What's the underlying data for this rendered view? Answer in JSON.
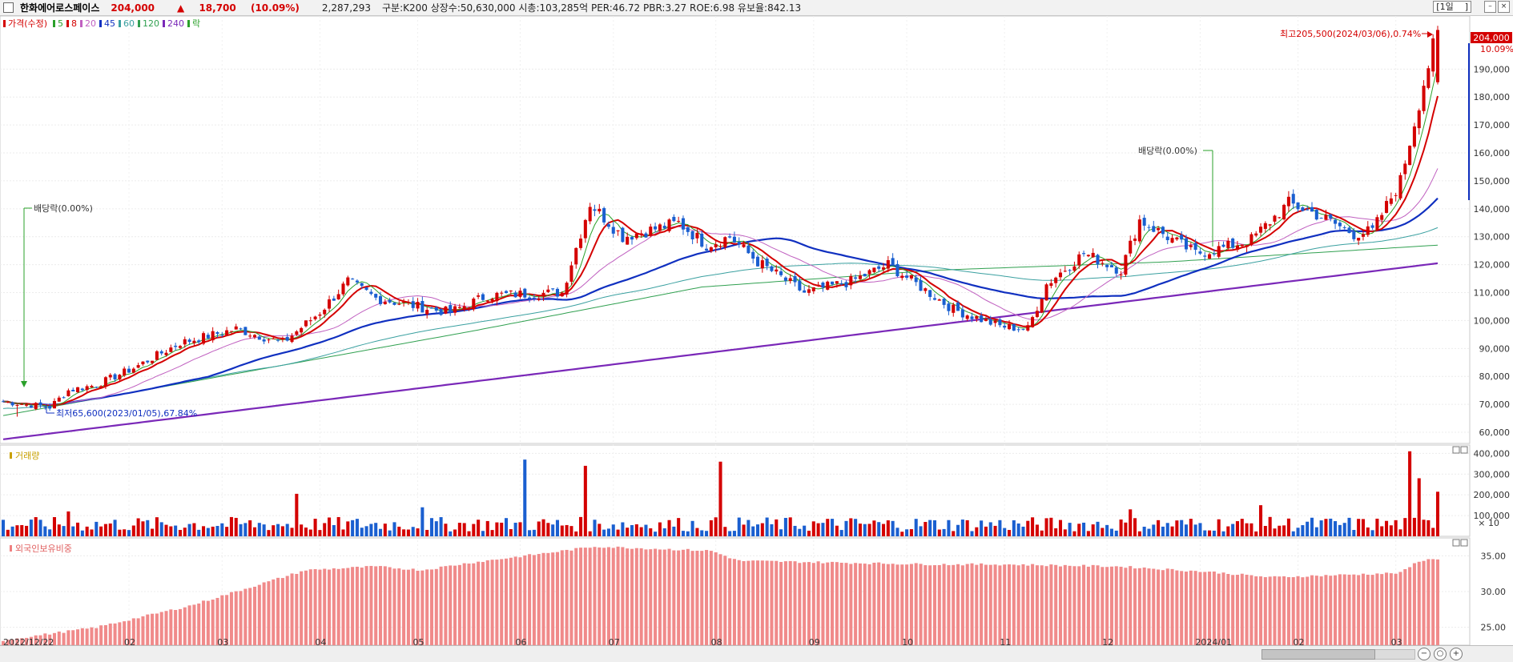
{
  "header": {
    "stock_name": "한화에어로스페이스",
    "price": "204,000",
    "change_arrow": "▲",
    "change": "18,700",
    "change_pct": "(10.09%)",
    "volume": "2,287,293",
    "info": "구분:K200 상장수:50,630,000 시총:103,285억 PER:46.72 PBR:3.27 ROE:6.98 유보율:842.13",
    "period": "1일"
  },
  "price_panel": {
    "legend": [
      {
        "label": "가격(수정)",
        "color": "#d40000"
      },
      {
        "label": "5",
        "color": "#2aa02a"
      },
      {
        "label": "8",
        "color": "#d40000"
      },
      {
        "label": "20",
        "color": "#c060c0"
      },
      {
        "label": "45",
        "color": "#1030c0"
      },
      {
        "label": "60",
        "color": "#3aa0a0"
      },
      {
        "label": "120",
        "color": "#30a050"
      },
      {
        "label": "240",
        "color": "#7a28b8"
      },
      {
        "label": "락",
        "color": "#2aa02a"
      }
    ],
    "high_label": "최고205,500(2024/03/06),0.74%",
    "low_label": "최저65,600(2023/01/05),67.84%",
    "dividend_label_1": "배당락(0.00%)",
    "dividend_label_2": "배당락(0.00%)",
    "current_price_tag": "204,000",
    "current_pct_tag": "10.09%"
  },
  "volume_panel": {
    "title": "거래량",
    "unit": "× 10"
  },
  "foreign_panel": {
    "title": "외국인보유비중"
  },
  "chart_data": [
    {
      "type": "candlestick",
      "title": "가격(수정)",
      "x_start": "2022/12/22",
      "x_tick_labels": [
        "2022/12/22",
        "02",
        "03",
        "04",
        "05",
        "06",
        "07",
        "08",
        "09",
        "10",
        "11",
        "12",
        "2024/01",
        "02",
        "03"
      ],
      "y_ticks": [
        60000,
        70000,
        80000,
        90000,
        100000,
        110000,
        120000,
        130000,
        140000,
        150000,
        160000,
        170000,
        180000,
        190000
      ],
      "y_tick_labels": [
        "60,000",
        "70,000",
        "80,000",
        "90,000",
        "100,000",
        "110,000",
        "120,000",
        "130,000",
        "140,000",
        "150,000",
        "160,000",
        "170,000",
        "180,000",
        "190,000"
      ],
      "ylim": [
        56000,
        209000
      ],
      "close_keypoints": [
        [
          0,
          71000
        ],
        [
          10,
          69000
        ],
        [
          14,
          75000
        ],
        [
          20,
          77000
        ],
        [
          28,
          83000
        ],
        [
          38,
          92000
        ],
        [
          50,
          97000
        ],
        [
          60,
          92000
        ],
        [
          68,
          103000
        ],
        [
          74,
          114000
        ],
        [
          80,
          108000
        ],
        [
          92,
          104000
        ],
        [
          96,
          103000
        ],
        [
          104,
          109000
        ],
        [
          120,
          110000
        ],
        [
          126,
          142000
        ],
        [
          133,
          130000
        ],
        [
          138,
          132000
        ],
        [
          145,
          135000
        ],
        [
          151,
          127000
        ],
        [
          156,
          130000
        ],
        [
          162,
          121000
        ],
        [
          172,
          110000
        ],
        [
          182,
          114000
        ],
        [
          190,
          120000
        ],
        [
          204,
          104000
        ],
        [
          214,
          98000
        ],
        [
          220,
          97000
        ],
        [
          224,
          113000
        ],
        [
          232,
          124000
        ],
        [
          240,
          118000
        ],
        [
          244,
          136000
        ],
        [
          256,
          124000
        ],
        [
          262,
          126000
        ],
        [
          268,
          129000
        ],
        [
          276,
          142000
        ],
        [
          282,
          138000
        ],
        [
          290,
          131000
        ],
        [
          294,
          132000
        ],
        [
          300,
          150000
        ],
        [
          305,
          185000
        ],
        [
          308,
          204000
        ]
      ],
      "highs": [
        {
          "date": "2024/03/06",
          "value": 205500
        }
      ],
      "lows": [
        {
          "date": "2023/01/05",
          "value": 65600
        }
      ],
      "moving_averages": [
        {
          "period": 5,
          "color": "#2aa02a"
        },
        {
          "period": 8,
          "color": "#d40000"
        },
        {
          "period": 20,
          "color": "#c060c0"
        },
        {
          "period": 45,
          "color": "#1030c0"
        },
        {
          "period": 60,
          "color": "#3aa0a0"
        },
        {
          "period": 120,
          "color": "#30a050"
        },
        {
          "period": 240,
          "color": "#7a28b8"
        }
      ],
      "ma240_keypoints": [
        [
          0,
          57500
        ],
        [
          308,
          120500
        ]
      ],
      "ma120_keypoints": [
        [
          0,
          66000
        ],
        [
          100,
          96000
        ],
        [
          150,
          112000
        ],
        [
          200,
          118000
        ],
        [
          250,
          121000
        ],
        [
          308,
          127000
        ]
      ]
    },
    {
      "type": "bar",
      "title": "거래량",
      "y_tick_labels": [
        "400,000",
        "300,000",
        "200,000",
        "100,000"
      ],
      "y_ticks": [
        400000,
        300000,
        200000,
        100000
      ],
      "ylim": [
        0,
        440000
      ],
      "volume_spikes": [
        [
          14,
          120000
        ],
        [
          63,
          205000
        ],
        [
          90,
          140000
        ],
        [
          112,
          370000
        ],
        [
          125,
          340000
        ],
        [
          154,
          360000
        ],
        [
          242,
          130000
        ],
        [
          270,
          150000
        ],
        [
          302,
          410000
        ],
        [
          304,
          280000
        ],
        [
          308,
          215000
        ]
      ],
      "volume_baseline": 55000
    },
    {
      "type": "bar",
      "title": "외국인보유비중",
      "y_tick_labels": [
        "35.00",
        "30.00",
        "25.00"
      ],
      "y_ticks": [
        35,
        30,
        25
      ],
      "ylim": [
        22.5,
        37.5
      ],
      "keypoints": [
        [
          0,
          23.2
        ],
        [
          20,
          25.0
        ],
        [
          40,
          28.0
        ],
        [
          65,
          33.0
        ],
        [
          80,
          33.5
        ],
        [
          90,
          33.0
        ],
        [
          100,
          34.0
        ],
        [
          118,
          35.5
        ],
        [
          127,
          36.3
        ],
        [
          152,
          35.7
        ],
        [
          158,
          34.3
        ],
        [
          200,
          33.8
        ],
        [
          215,
          33.8
        ],
        [
          240,
          33.5
        ],
        [
          260,
          32.7
        ],
        [
          272,
          32.0
        ],
        [
          300,
          32.6
        ],
        [
          304,
          34.3
        ],
        [
          308,
          34.6
        ]
      ]
    }
  ]
}
